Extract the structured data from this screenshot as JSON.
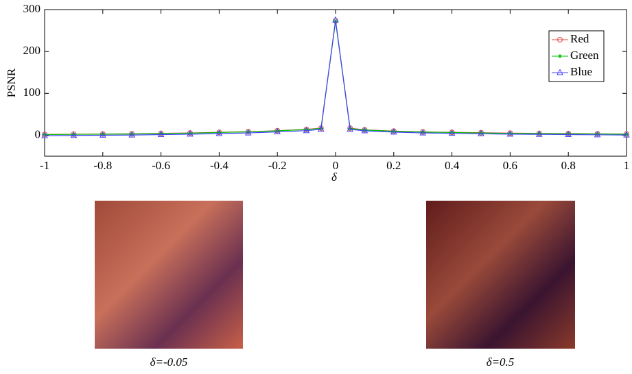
{
  "chart_data": {
    "type": "line",
    "x": [
      -1,
      -0.9,
      -0.8,
      -0.7,
      -0.6,
      -0.5,
      -0.4,
      -0.3,
      -0.2,
      -0.1,
      -0.05,
      0,
      0.05,
      0.1,
      0.2,
      0.3,
      0.4,
      0.5,
      0.6,
      0.7,
      0.8,
      0.9,
      1
    ],
    "series": [
      {
        "name": "Red",
        "color": "#e04848",
        "marker": "circle",
        "values": [
          2,
          2.5,
          3,
          3.5,
          4.5,
          5.5,
          7,
          8.5,
          11,
          14,
          17,
          273,
          17,
          13,
          10,
          8,
          7,
          6,
          5,
          4.5,
          4,
          3.5,
          3
        ]
      },
      {
        "name": "Green",
        "color": "#00c000",
        "marker": "star",
        "values": [
          1.5,
          2,
          2.5,
          3,
          4,
          5,
          6.5,
          8,
          10.5,
          13.5,
          16.5,
          272,
          16,
          12.5,
          9.5,
          7.5,
          6.5,
          5.5,
          4.5,
          4,
          3.5,
          3,
          2.5
        ]
      },
      {
        "name": "Blue",
        "color": "#4040ff",
        "marker": "triangle",
        "values": [
          -1,
          -0.5,
          0,
          0.5,
          1.5,
          2.5,
          4,
          5.5,
          8,
          11,
          14,
          275,
          14,
          10.5,
          7.5,
          5.5,
          4.5,
          3.5,
          2.5,
          2,
          1.5,
          1,
          0.5
        ]
      }
    ],
    "xlabel": "δ",
    "ylabel": "PSNR",
    "xlim": [
      -1,
      1
    ],
    "xticks": [
      -1,
      -0.8,
      -0.6,
      -0.4,
      -0.2,
      0,
      0.2,
      0.4,
      0.6,
      0.8,
      1
    ],
    "ylim": [
      -50,
      300
    ],
    "yticks": [
      0,
      100,
      200,
      300
    ],
    "legend": "upper right",
    "grid": false
  },
  "images": [
    {
      "caption": "δ=-0.05"
    },
    {
      "caption": "δ=0.5"
    }
  ]
}
